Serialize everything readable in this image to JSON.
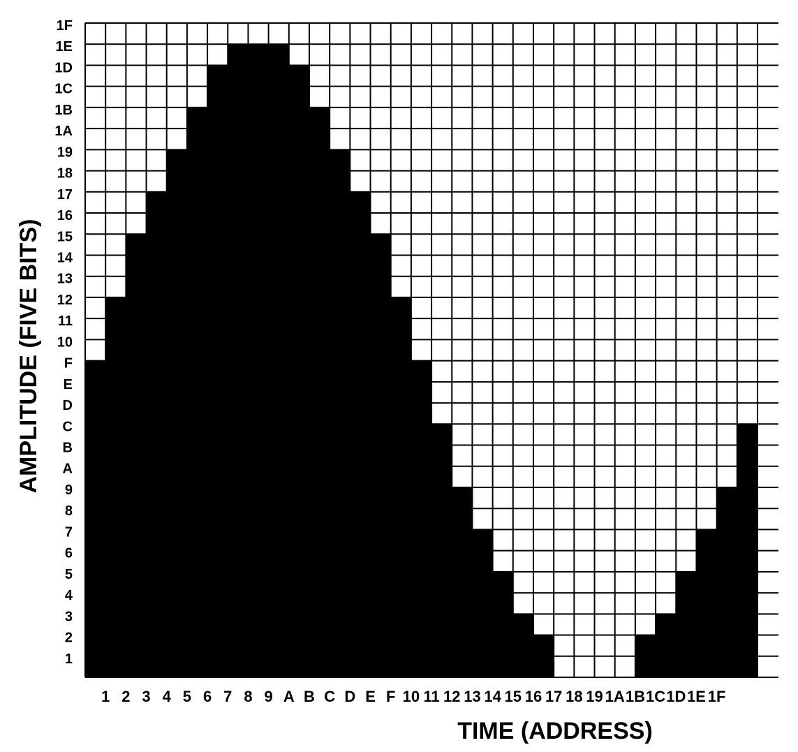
{
  "chart_data": {
    "type": "bar",
    "title": "",
    "xlabel": "TIME (ADDRESS)",
    "ylabel": "AMPLITUDE (FIVE BITS)",
    "x_tick_labels": [
      "1",
      "2",
      "3",
      "4",
      "5",
      "6",
      "7",
      "8",
      "9",
      "A",
      "B",
      "C",
      "D",
      "E",
      "F",
      "10",
      "11",
      "12",
      "13",
      "14",
      "15",
      "16",
      "17",
      "18",
      "19",
      "1A",
      "1B",
      "1C",
      "1D",
      "1E",
      "1F"
    ],
    "y_tick_labels": [
      "1",
      "2",
      "3",
      "4",
      "5",
      "6",
      "7",
      "8",
      "9",
      "A",
      "B",
      "C",
      "D",
      "E",
      "F",
      "10",
      "11",
      "12",
      "13",
      "14",
      "15",
      "16",
      "17",
      "18",
      "19",
      "1A",
      "1B",
      "1C",
      "1D",
      "1E",
      "1F"
    ],
    "x": [
      0,
      1,
      2,
      3,
      4,
      5,
      6,
      7,
      8,
      9,
      10,
      11,
      12,
      13,
      14,
      15,
      16,
      17,
      18,
      19,
      20,
      21,
      22,
      23,
      24,
      25,
      26,
      27,
      28,
      29,
      30,
      31,
      32
    ],
    "values": [
      15,
      18,
      21,
      23,
      25,
      27,
      29,
      30,
      30,
      30,
      29,
      27,
      25,
      23,
      21,
      18,
      15,
      12,
      9,
      7,
      5,
      3,
      2,
      0,
      0,
      0,
      0,
      2,
      3,
      5,
      7,
      9,
      12
    ],
    "ylim": [
      0,
      31
    ],
    "xlim": [
      0,
      33
    ],
    "grid": true,
    "colors": {
      "filled": "#000000",
      "empty": "#ffffff",
      "grid": "#000000"
    }
  }
}
